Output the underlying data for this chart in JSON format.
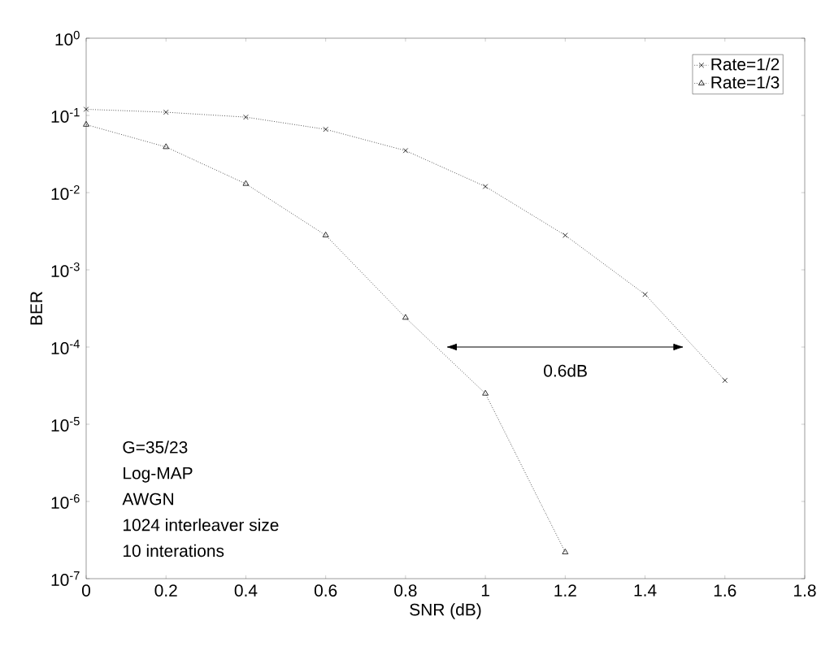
{
  "chart_data": {
    "type": "line",
    "xlabel": "SNR (dB)",
    "ylabel": "BER",
    "x": [
      0,
      0.2,
      0.4,
      0.6,
      0.8,
      1.0,
      1.2,
      1.4,
      1.6
    ],
    "series": [
      {
        "name": "Rate=1/2",
        "color": "#000000",
        "marker": "cross",
        "values": [
          0.12,
          0.11,
          0.095,
          0.066,
          0.035,
          0.012,
          0.0028,
          0.00048,
          3.7e-05
        ]
      },
      {
        "name": "Rate=1/3",
        "color": "#000000",
        "marker": "triangle",
        "values": [
          0.076,
          0.039,
          0.013,
          0.0028,
          0.00024,
          2.5e-05,
          2.2e-07,
          null,
          null
        ]
      }
    ],
    "log": "y",
    "xlim": [
      0,
      1.8
    ],
    "ylim": [
      1e-07,
      1
    ],
    "xticks": [
      0,
      0.2,
      0.4,
      0.6,
      0.8,
      1,
      1.2,
      1.4,
      1.6,
      1.8
    ],
    "yticks": [
      {
        "value": 1e-07,
        "label": "10$^{-7}$"
      },
      {
        "value": 1e-06,
        "label": "10$^{-6}$"
      },
      {
        "value": 1e-05,
        "label": "10$^{-5}$"
      },
      {
        "value": 0.0001,
        "label": "10$^{-4}$"
      },
      {
        "value": 0.001,
        "label": "10$^{-3}$"
      },
      {
        "value": 0.01,
        "label": "10$^{-2}$"
      },
      {
        "value": 0.1,
        "label": "10$^{-1}$"
      },
      {
        "value": 1,
        "label": "10$^{0}$"
      }
    ],
    "line_style": "dotted",
    "grid": false,
    "legend": "top right",
    "annotations": [
      "0.6dB",
      "G=35/23",
      "Log-MAP",
      "AWGN",
      "1024 interleaver size",
      "10 interations"
    ]
  }
}
